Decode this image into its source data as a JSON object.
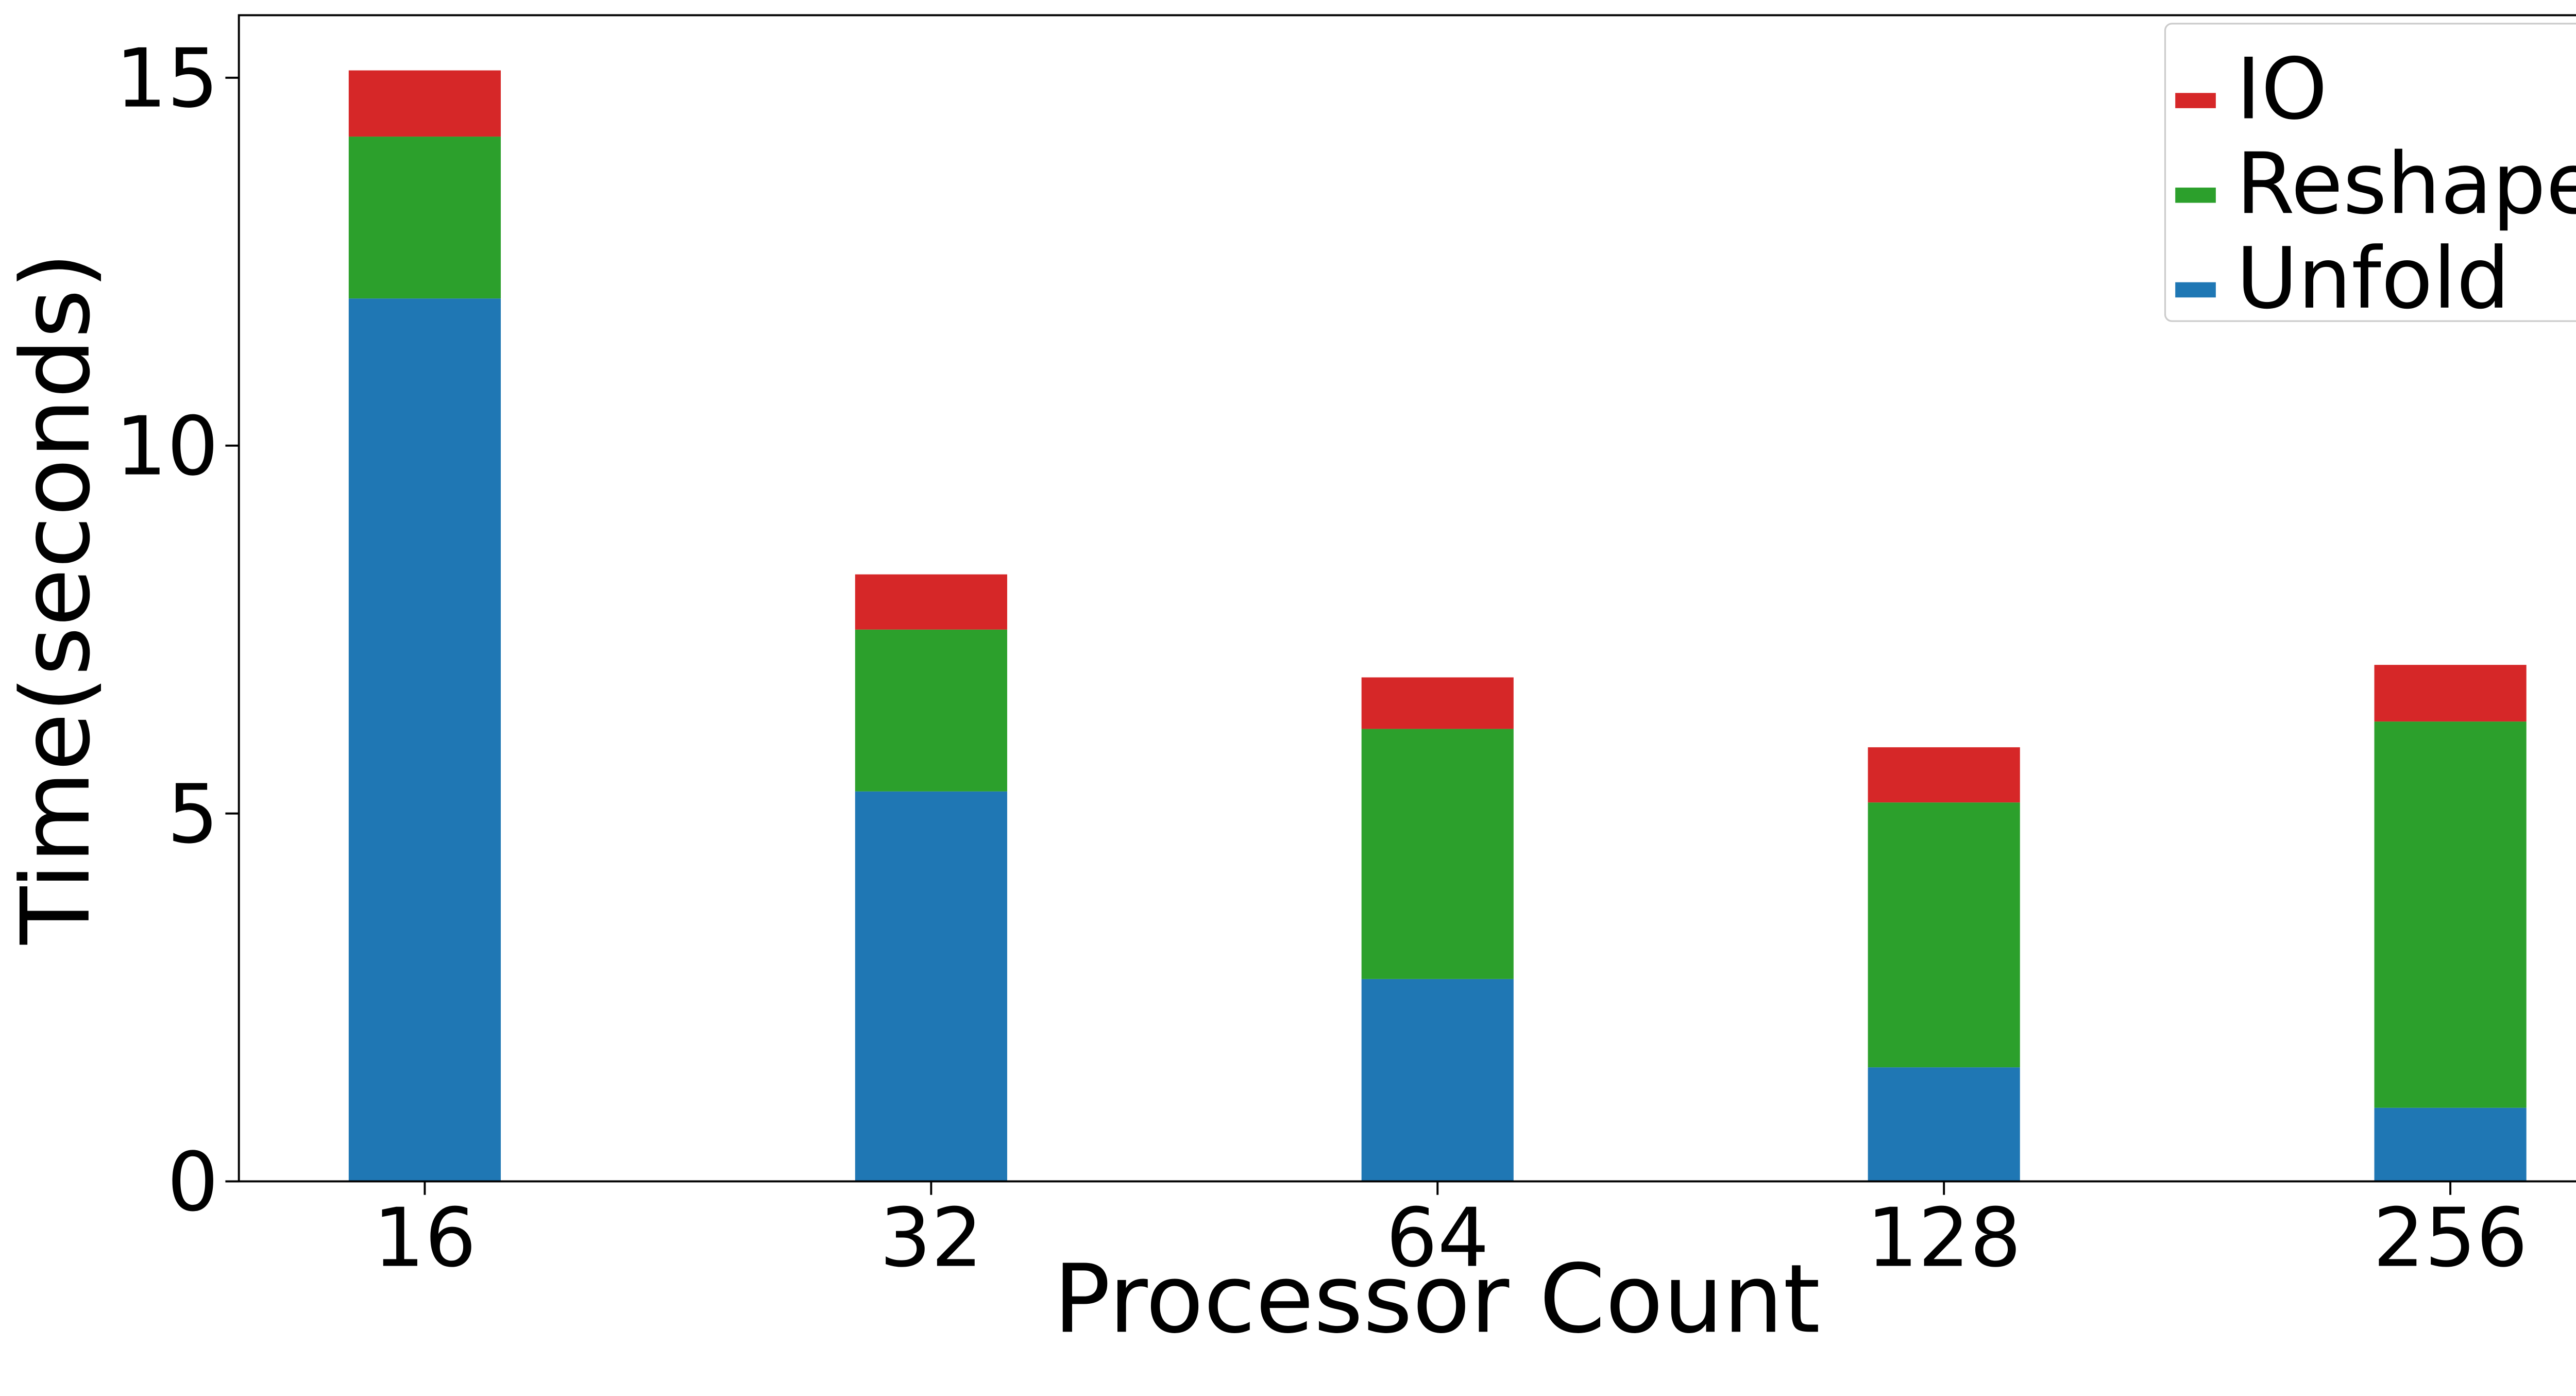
{
  "chart_data": {
    "type": "stacked_bar",
    "xlabel": "Processor Count",
    "ylabel": "Time(seconds)",
    "categories": [
      "16",
      "32",
      "64",
      "128",
      "256"
    ],
    "series": [
      {
        "name": "Unfold",
        "color": "#1f77b4",
        "values": [
          12.0,
          5.3,
          2.75,
          1.55,
          1.0
        ]
      },
      {
        "name": "Reshape",
        "color": "#2ca02c",
        "values": [
          2.2,
          2.2,
          3.4,
          3.6,
          5.25
        ]
      },
      {
        "name": "IO",
        "color": "#d62728",
        "values": [
          0.9,
          0.75,
          0.7,
          0.75,
          0.77
        ]
      }
    ],
    "ylim": [
      0,
      15.85
    ],
    "yticks": [
      0,
      5,
      10,
      15
    ],
    "legend": "upper right",
    "grid": false
  }
}
